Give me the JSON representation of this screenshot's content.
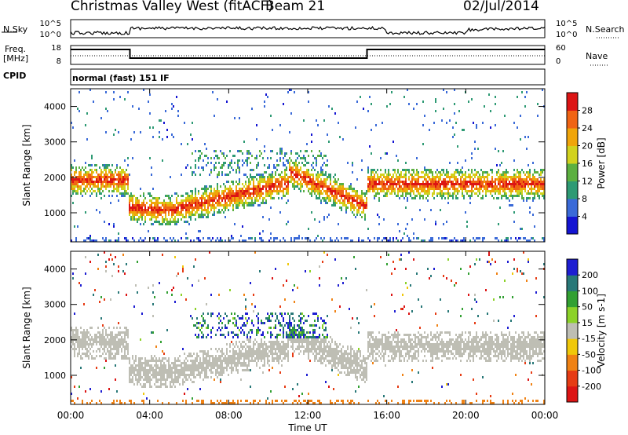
{
  "header": {
    "radar_title": "Christmas Valley West (fitACF)",
    "beam_label": "Beam 21",
    "date": "02/Jul/2014"
  },
  "params": {
    "nsky_label": "N.Sky",
    "nsky_ticks": [
      "10^5",
      "10^0"
    ],
    "nsearch_label": "N.Search",
    "nsearch_ticks": [
      "10^5",
      "10^0"
    ],
    "freq_label": "Freq.",
    "freq_unit": "[MHz]",
    "freq_ticks": [
      "18",
      "8"
    ],
    "nave_label": "Nave",
    "nave_ticks": [
      "60",
      "0"
    ],
    "cpid_label": "CPID",
    "cpid_value": "normal (fast) 151 IF"
  },
  "chart_data": [
    {
      "type": "heatmap",
      "title": "",
      "xlabel": "Time UT",
      "ylabel": "Slant Range [km]",
      "x_ticks": [
        "00:00",
        "04:00",
        "08:00",
        "12:00",
        "16:00",
        "20:00",
        "00:00"
      ],
      "xlim_hours": [
        0,
        24
      ],
      "y_ticks": [
        1000,
        2000,
        3000,
        4000
      ],
      "ylim": [
        180,
        4500
      ],
      "colorbar": {
        "label": "Power [dB]",
        "ticks": [
          4,
          8,
          12,
          16,
          20,
          24,
          28
        ],
        "range": [
          0,
          30
        ],
        "colors": [
          "#1414d2",
          "#3a6ad8",
          "#2e9a74",
          "#5cb040",
          "#d2d21e",
          "#f0a50a",
          "#f06414",
          "#dc1414"
        ]
      },
      "echo_bands": [
        {
          "name": "main",
          "from_hour": 0.0,
          "to_hour": 2.9,
          "center_km": 1950,
          "width_km": 320,
          "peak_db": 27
        },
        {
          "name": "main",
          "from_hour": 2.9,
          "to_hour": 11.0,
          "center_km": 1180,
          "width_km": 320,
          "peak_db": 28
        },
        {
          "name": "main",
          "from_hour": 11.0,
          "to_hour": 15.0,
          "center_km": 1600,
          "width_km": 300,
          "peak_db": 24
        },
        {
          "name": "main",
          "from_hour": 15.0,
          "to_hour": 24.0,
          "center_km": 1850,
          "width_km": 380,
          "peak_db": 27
        }
      ]
    },
    {
      "type": "heatmap",
      "title": "",
      "xlabel": "Time UT",
      "ylabel": "Slant Range [km]",
      "x_ticks": [
        "00:00",
        "04:00",
        "08:00",
        "12:00",
        "16:00",
        "20:00",
        "00:00"
      ],
      "xlim_hours": [
        0,
        24
      ],
      "y_ticks": [
        1000,
        2000,
        3000,
        4000
      ],
      "ylim": [
        180,
        4500
      ],
      "colorbar": {
        "label": "Velocity [m s-1]",
        "ticks": [
          "200",
          "100",
          "50",
          "15",
          "-15",
          "-50",
          "-100",
          "-200"
        ],
        "range": [
          -250,
          250
        ],
        "colors": [
          "#1e1ed2",
          "#287878",
          "#32a032",
          "#8cd228",
          "#bebeb4",
          "#f0c80a",
          "#f08214",
          "#e63c14",
          "#dc1414"
        ]
      },
      "dominant_velocity": "ground scatter (-15 to 15 m/s)"
    }
  ]
}
